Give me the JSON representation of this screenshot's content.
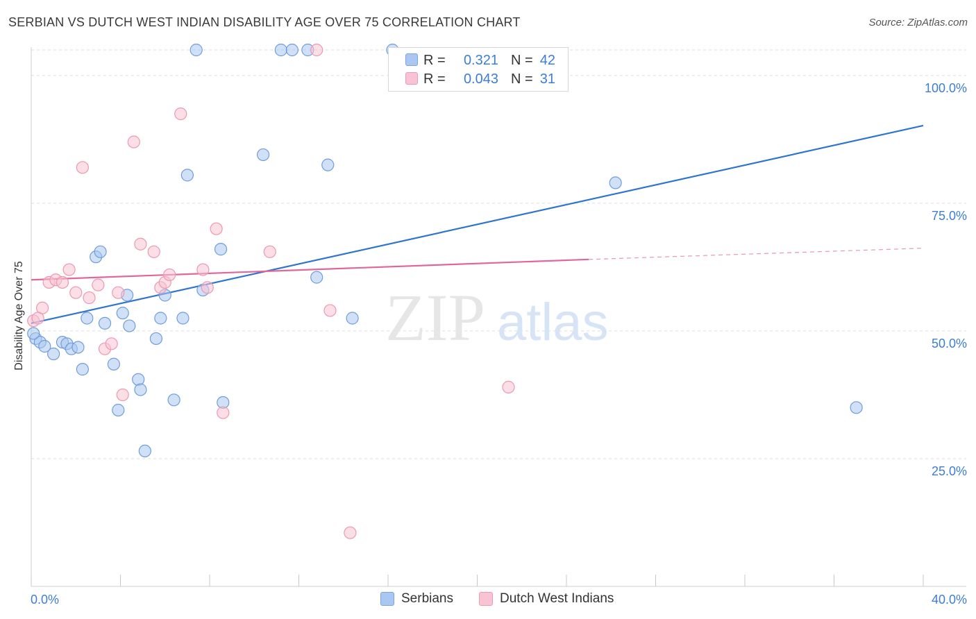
{
  "title": "SERBIAN VS DUTCH WEST INDIAN DISABILITY AGE OVER 75 CORRELATION CHART",
  "source": "Source: ZipAtlas.com",
  "watermark": {
    "zip": "ZIP",
    "atlas": "atlas"
  },
  "legend": {
    "rows": [
      {
        "r_label": "R =",
        "r_value": "0.321",
        "n_label": "N =",
        "n_value": "42",
        "color": "#a9c7f0",
        "stroke": "#7aa6e0"
      },
      {
        "r_label": "R =",
        "r_value": "0.043",
        "n_label": "N =",
        "n_value": "31",
        "color": "#f8c3d2",
        "stroke": "#ee9ab4"
      }
    ]
  },
  "bottom_legend": {
    "series1": "Serbians",
    "series2": "Dutch West Indians"
  },
  "chart_data": {
    "type": "scatter",
    "title": "SERBIAN VS DUTCH WEST INDIAN DISABILITY AGE OVER 75 CORRELATION CHART",
    "xlabel": "",
    "ylabel": "Disability Age Over 75",
    "xlim": [
      0,
      40
    ],
    "ylim": [
      0,
      105
    ],
    "x_tick_labels": [
      "0.0%",
      "40.0%"
    ],
    "y_ticks": [
      25,
      50,
      75,
      100
    ],
    "y_tick_labels": [
      "25.0%",
      "50.0%",
      "75.0%",
      "100.0%"
    ],
    "grid": true,
    "series": [
      {
        "name": "Serbians",
        "color": "#a9c7f0",
        "stroke": "#6f9ddc",
        "line_color": "#2f74d0",
        "trend": {
          "x0": 0,
          "y0": 51.5,
          "x1": 40,
          "y1": 90.2
        },
        "points": [
          [
            0.2,
            48.5
          ],
          [
            0.4,
            47.8
          ],
          [
            0.6,
            47.0
          ],
          [
            1.0,
            45.5
          ],
          [
            1.4,
            47.8
          ],
          [
            1.6,
            47.5
          ],
          [
            1.8,
            46.5
          ],
          [
            2.1,
            46.8
          ],
          [
            2.3,
            42.5
          ],
          [
            2.5,
            52.5
          ],
          [
            2.9,
            64.5
          ],
          [
            3.1,
            65.5
          ],
          [
            3.3,
            51.5
          ],
          [
            3.7,
            43.5
          ],
          [
            3.9,
            34.5
          ],
          [
            4.1,
            53.5
          ],
          [
            4.3,
            57.0
          ],
          [
            4.4,
            51.0
          ],
          [
            4.8,
            40.5
          ],
          [
            4.9,
            38.5
          ],
          [
            5.1,
            26.5
          ],
          [
            5.6,
            48.5
          ],
          [
            5.8,
            52.5
          ],
          [
            6.0,
            57.0
          ],
          [
            6.4,
            36.5
          ],
          [
            6.8,
            52.5
          ],
          [
            7.0,
            80.5
          ],
          [
            7.4,
            105.0
          ],
          [
            7.7,
            58.0
          ],
          [
            8.5,
            66.0
          ],
          [
            8.6,
            36.0
          ],
          [
            10.4,
            84.5
          ],
          [
            11.2,
            105.0
          ],
          [
            11.7,
            105.0
          ],
          [
            12.4,
            105.0
          ],
          [
            12.8,
            60.5
          ],
          [
            13.3,
            82.5
          ],
          [
            14.4,
            52.5
          ],
          [
            16.2,
            105.0
          ],
          [
            26.2,
            79.0
          ],
          [
            37.0,
            35.0
          ],
          [
            0.1,
            49.5
          ]
        ]
      },
      {
        "name": "Dutch West Indians",
        "color": "#f8c3d2",
        "stroke": "#ec98b1",
        "line_color": "#e0679a",
        "trend": {
          "x0": 0,
          "y0": 60.0,
          "x1": 25.0,
          "y1": 64.0
        },
        "trend_dashed": {
          "x0": 25.0,
          "y0": 64.0,
          "x1": 40,
          "y1": 66.2
        },
        "points": [
          [
            0.1,
            52.0
          ],
          [
            0.5,
            54.5
          ],
          [
            0.8,
            59.5
          ],
          [
            1.1,
            60.0
          ],
          [
            1.4,
            59.5
          ],
          [
            1.7,
            62.0
          ],
          [
            2.0,
            57.5
          ],
          [
            2.3,
            82.0
          ],
          [
            2.6,
            56.5
          ],
          [
            3.0,
            59.0
          ],
          [
            3.3,
            46.5
          ],
          [
            3.6,
            47.5
          ],
          [
            3.9,
            57.5
          ],
          [
            4.1,
            37.5
          ],
          [
            4.6,
            87.0
          ],
          [
            4.9,
            67.0
          ],
          [
            5.5,
            65.5
          ],
          [
            5.8,
            58.5
          ],
          [
            6.0,
            59.5
          ],
          [
            6.2,
            61.0
          ],
          [
            6.7,
            92.5
          ],
          [
            7.7,
            62.0
          ],
          [
            7.9,
            58.5
          ],
          [
            8.3,
            70.0
          ],
          [
            8.6,
            34.0
          ],
          [
            10.7,
            65.5
          ],
          [
            12.8,
            105.0
          ],
          [
            13.4,
            54.0
          ],
          [
            14.3,
            10.5
          ],
          [
            21.4,
            39.0
          ],
          [
            0.3,
            52.5
          ]
        ]
      }
    ]
  }
}
